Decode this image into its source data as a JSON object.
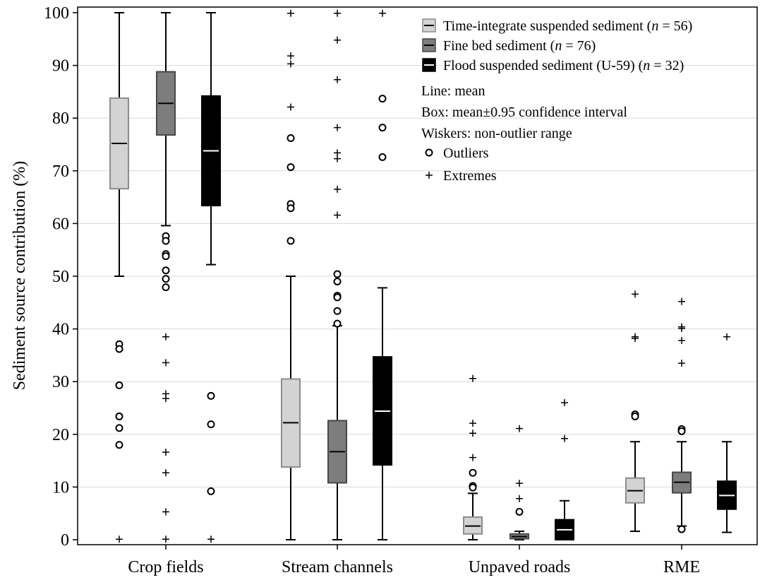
{
  "chart_data": {
    "type": "box",
    "ylabel": "Sediment source contribution (%)",
    "xlabel": "",
    "ylim": [
      0,
      100
    ],
    "yticks": [
      0,
      10,
      20,
      30,
      40,
      50,
      60,
      70,
      80,
      90,
      100
    ],
    "grid": "horizontal",
    "legend_position": "top-right",
    "categories": [
      "Crop fields",
      "Stream channels",
      "Unpaved roads",
      "RME"
    ],
    "series": [
      {
        "name_parts": [
          "Time-integrate suspended sediment (",
          "n",
          " = 56)"
        ],
        "fill": "#d3d3d3",
        "stroke": "#8c8c8c",
        "mean_line": "#000000",
        "boxes": [
          {
            "category": "Crop fields",
            "mean": 75.2,
            "box_low": 66.6,
            "box_high": 83.8,
            "whisker_low": 50.0,
            "whisker_high": 100.0,
            "outliers": [
              37.1,
              36.2,
              29.3,
              23.4,
              21.2,
              18.0
            ],
            "extremes": [
              0.1
            ]
          },
          {
            "category": "Stream channels",
            "mean": 22.2,
            "box_low": 13.8,
            "box_high": 30.5,
            "whisker_low": 0.0,
            "whisker_high": 50.0,
            "outliers": [
              76.2,
              70.7,
              63.7,
              62.9,
              56.7
            ],
            "extremes": [
              99.9,
              91.8,
              90.3,
              82.1
            ]
          },
          {
            "category": "Unpaved roads",
            "mean": 2.6,
            "box_low": 1.1,
            "box_high": 4.3,
            "whisker_low": 0.0,
            "whisker_high": 8.8,
            "outliers": [
              12.7,
              10.2,
              9.9
            ],
            "extremes": [
              30.6,
              22.1,
              20.2,
              15.6
            ]
          },
          {
            "category": "RME",
            "mean": 9.3,
            "box_low": 7.0,
            "box_high": 11.7,
            "whisker_low": 1.6,
            "whisker_high": 18.6,
            "outliers": [
              23.8,
              23.4
            ],
            "extremes": [
              46.6,
              38.5,
              38.2
            ]
          }
        ]
      },
      {
        "name_parts": [
          "Fine bed sediment (",
          "n",
          " = 76)"
        ],
        "fill": "#7d7d7d",
        "stroke": "#474747",
        "mean_line": "#000000",
        "boxes": [
          {
            "category": "Crop fields",
            "mean": 82.8,
            "box_low": 76.8,
            "box_high": 88.8,
            "whisker_low": 59.6,
            "whisker_high": 100.0,
            "outliers": [
              57.6,
              56.7,
              54.2,
              53.8,
              51.1,
              49.5,
              47.9
            ],
            "extremes": [
              38.5,
              33.6,
              27.7,
              26.8,
              16.6,
              12.7,
              5.3,
              0.1
            ]
          },
          {
            "category": "Stream channels",
            "mean": 16.7,
            "box_low": 10.8,
            "box_high": 22.6,
            "whisker_low": 0.0,
            "whisker_high": 40.6,
            "outliers": [
              50.4,
              49.0,
              46.3,
              46.0,
              43.4,
              41.0
            ],
            "extremes": [
              99.9,
              94.8,
              87.3,
              78.2,
              73.4,
              72.3,
              66.5,
              61.6
            ]
          },
          {
            "category": "Unpaved roads",
            "mean": 0.6,
            "box_low": 0.2,
            "box_high": 1.1,
            "whisker_low": 0.0,
            "whisker_high": 1.6,
            "outliers": [
              5.3
            ],
            "extremes": [
              21.1,
              10.7,
              7.8
            ]
          },
          {
            "category": "RME",
            "mean": 10.9,
            "box_low": 8.9,
            "box_high": 12.8,
            "whisker_low": 2.6,
            "whisker_high": 18.6,
            "outliers": [
              21.0,
              20.6,
              2.0
            ],
            "extremes": [
              45.2,
              40.4,
              40.1,
              37.8,
              33.5
            ]
          }
        ]
      },
      {
        "name_parts": [
          "Flood suspended sediment (U-59) (",
          "n",
          " = 32)"
        ],
        "fill": "#000000",
        "stroke": "#000000",
        "mean_line": "#ffffff",
        "boxes": [
          {
            "category": "Crop fields",
            "mean": 73.8,
            "box_low": 63.4,
            "box_high": 84.2,
            "whisker_low": 52.2,
            "whisker_high": 100.0,
            "outliers": [
              27.3,
              21.9,
              9.2
            ],
            "extremes": [
              0.1
            ]
          },
          {
            "category": "Stream channels",
            "mean": 24.4,
            "box_low": 14.2,
            "box_high": 34.7,
            "whisker_low": 0.0,
            "whisker_high": 47.8,
            "outliers": [
              83.7,
              78.2,
              72.6
            ],
            "extremes": [
              99.9
            ]
          },
          {
            "category": "Unpaved roads",
            "mean": 1.9,
            "box_low": 0.0,
            "box_high": 3.8,
            "whisker_low": 0.0,
            "whisker_high": 7.4,
            "outliers": [],
            "extremes": [
              26.0,
              19.2
            ]
          },
          {
            "category": "RME",
            "mean": 8.4,
            "box_low": 5.8,
            "box_high": 11.1,
            "whisker_low": 1.4,
            "whisker_high": 18.6,
            "outliers": [],
            "extremes": [
              38.5
            ]
          }
        ]
      }
    ],
    "legend_notes": [
      "Line: mean",
      "Box: mean±0.95 confidence interval",
      "Wiskers: non-outlier range"
    ],
    "legend_symbols": [
      {
        "marker": "circle",
        "label": "Outliers"
      },
      {
        "marker": "plus",
        "label": "Extremes"
      }
    ]
  }
}
